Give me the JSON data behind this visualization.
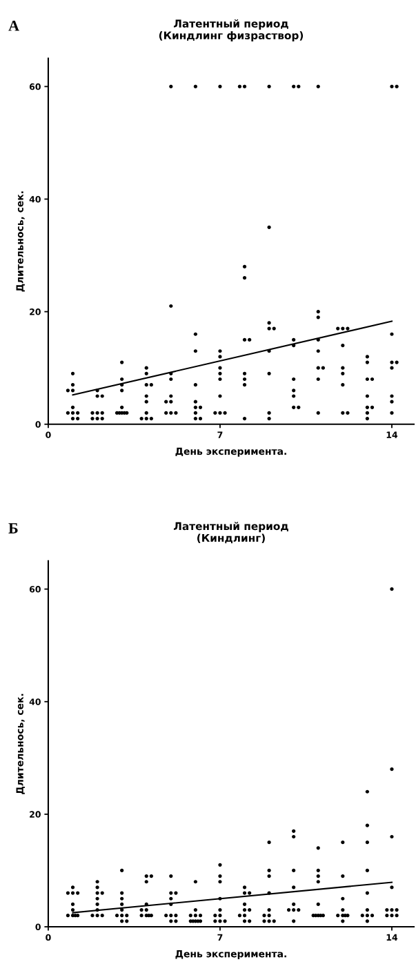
{
  "chart_data": [
    {
      "type": "scatter",
      "title": "Латентный период\n(Киндлинг физраствор)",
      "xlabel": "День эксперимента.",
      "ylabel": "Длительнось, сек.",
      "annotations": [
        "А"
      ],
      "xlim": [
        0,
        14.9
      ],
      "ylim": [
        0,
        65
      ],
      "xticks": [
        0,
        7,
        14
      ],
      "yticks": [
        0,
        20,
        40,
        60
      ],
      "marker": "circle",
      "series": [
        {
          "color": "#000000",
          "x": [
            1,
            1,
            0.8,
            1,
            1,
            0.8,
            1,
            1.2,
            1,
            1.2,
            2,
            2,
            2.2,
            1.8,
            2,
            2.2,
            1.8,
            2,
            2.2,
            3,
            3,
            3,
            3,
            3,
            2.8,
            2.9,
            3,
            3.1,
            3.2,
            4,
            4,
            4,
            4.2,
            4,
            4,
            4,
            3.8,
            4,
            4.2,
            5,
            5,
            5,
            5,
            5,
            4.8,
            5,
            4.8,
            5,
            5.2,
            6,
            6,
            6,
            6,
            6,
            6,
            6.2,
            6,
            6,
            6.2,
            7,
            7,
            7,
            7,
            7,
            7,
            7,
            6.8,
            7,
            7.2,
            8,
            7.8,
            8,
            8,
            8,
            8.2,
            8,
            8,
            8,
            8,
            9,
            9,
            9,
            9,
            9.2,
            9,
            9,
            9,
            9,
            10,
            10.2,
            10,
            10,
            10,
            10,
            10,
            10,
            10.2,
            11,
            11,
            11,
            11,
            11,
            11,
            11.2,
            11,
            11,
            11.8,
            12,
            12.2,
            12,
            12,
            12,
            12,
            12,
            12.2,
            13,
            13,
            13,
            13.2,
            13,
            13,
            13.2,
            13,
            13,
            14,
            14.2,
            14,
            14,
            14.2,
            14,
            14,
            14,
            14
          ],
          "values": [
            9,
            7,
            6,
            6,
            3,
            2,
            2,
            2,
            1,
            1,
            6,
            5,
            5,
            2,
            2,
            2,
            1,
            1,
            1,
            11,
            8,
            7,
            6,
            3,
            2,
            2,
            2,
            2,
            2,
            10,
            9,
            7,
            7,
            5,
            4,
            2,
            1,
            1,
            1,
            60,
            21,
            9,
            8,
            5,
            4,
            4,
            2,
            2,
            2,
            60,
            16,
            13,
            7,
            4,
            3,
            3,
            2,
            1,
            1,
            60,
            13,
            12,
            10,
            9,
            8,
            5,
            2,
            2,
            2,
            60,
            60,
            28,
            26,
            15,
            15,
            9,
            8,
            7,
            1,
            60,
            35,
            18,
            17,
            17,
            13,
            9,
            2,
            1,
            60,
            60,
            15,
            14,
            8,
            6,
            5,
            3,
            3,
            60,
            20,
            19,
            15,
            13,
            10,
            10,
            8,
            2,
            17,
            17,
            17,
            14,
            10,
            9,
            7,
            2,
            2,
            12,
            11,
            8,
            8,
            5,
            3,
            3,
            2,
            1,
            60,
            60,
            16,
            11,
            11,
            10,
            5,
            4,
            2
          ]
        },
        {
          "type": "line",
          "marker": "none",
          "color": "#000000",
          "x": [
            1,
            14
          ],
          "values": [
            5.2,
            18.3
          ]
        }
      ]
    },
    {
      "type": "scatter",
      "title": "Латентный период\n(Киндлинг)",
      "xlabel": "День эксперимента.",
      "ylabel": "Длительнось, сек.",
      "annotations": [
        "Б"
      ],
      "xlim": [
        0,
        14.9
      ],
      "ylim": [
        0,
        65
      ],
      "xticks": [
        0,
        7,
        14
      ],
      "yticks": [
        0,
        20,
        40,
        60
      ],
      "marker": "circle",
      "series": [
        {
          "color": "#000000",
          "x": [
            1,
            0.8,
            1,
            1.2,
            1,
            1,
            0.8,
            1,
            1.1,
            1.2,
            2,
            2,
            2,
            2.2,
            2,
            2,
            2,
            1.8,
            2,
            2.2,
            3,
            3,
            3,
            3,
            3,
            2.8,
            3,
            3.2,
            3,
            3.2,
            4,
            4.2,
            4,
            4,
            3.8,
            4,
            3.8,
            4,
            4.1,
            4.2,
            5,
            5,
            5.2,
            5,
            5,
            4.8,
            5,
            5.2,
            5,
            5.2,
            6,
            6,
            5.8,
            6,
            6.2,
            5.8,
            5.9,
            6,
            6.1,
            6.2,
            7,
            7,
            7,
            7,
            7,
            6.8,
            7,
            6.8,
            7,
            7.2,
            8,
            8,
            8.2,
            8,
            8,
            8.2,
            7.8,
            8,
            8,
            8.2,
            9,
            9,
            9,
            9,
            9,
            8.8,
            9,
            8.8,
            9,
            9.2,
            10,
            10,
            10,
            10,
            10,
            9.8,
            10,
            10.2,
            10,
            11,
            11,
            11,
            11,
            11,
            10.8,
            10.9,
            11,
            11.1,
            11.2,
            12,
            12,
            12,
            12,
            11.8,
            12,
            12.1,
            12.2,
            12,
            13,
            13,
            13,
            13,
            13,
            13,
            12.8,
            13,
            13.2,
            13,
            14,
            14,
            14,
            14,
            13.8,
            14,
            14.2,
            13.8,
            14,
            14.2
          ],
          "values": [
            7,
            6,
            6,
            6,
            4,
            3,
            2,
            2,
            2,
            2,
            8,
            7,
            6,
            6,
            5,
            4,
            3,
            2,
            2,
            2,
            10,
            6,
            5,
            4,
            3,
            2,
            2,
            2,
            1,
            1,
            9,
            9,
            8,
            4,
            3,
            3,
            2,
            2,
            2,
            2,
            9,
            6,
            6,
            5,
            4,
            2,
            2,
            2,
            1,
            1,
            8,
            3,
            2,
            2,
            2,
            1,
            1,
            1,
            1,
            1,
            11,
            9,
            8,
            5,
            3,
            2,
            2,
            1,
            1,
            1,
            7,
            6,
            6,
            4,
            3,
            3,
            2,
            2,
            1,
            1,
            15,
            10,
            9,
            6,
            3,
            2,
            2,
            1,
            1,
            1,
            17,
            16,
            10,
            7,
            4,
            3,
            3,
            3,
            1,
            14,
            10,
            9,
            8,
            4,
            2,
            2,
            2,
            2,
            2,
            15,
            9,
            5,
            3,
            2,
            2,
            2,
            2,
            1,
            24,
            18,
            15,
            10,
            6,
            3,
            2,
            2,
            2,
            1,
            60,
            28,
            16,
            7,
            3,
            3,
            3,
            2,
            2,
            2
          ]
        },
        {
          "type": "line",
          "marker": "none",
          "color": "#000000",
          "x": [
            1,
            14
          ],
          "values": [
            2.5,
            7.9
          ]
        }
      ]
    }
  ]
}
